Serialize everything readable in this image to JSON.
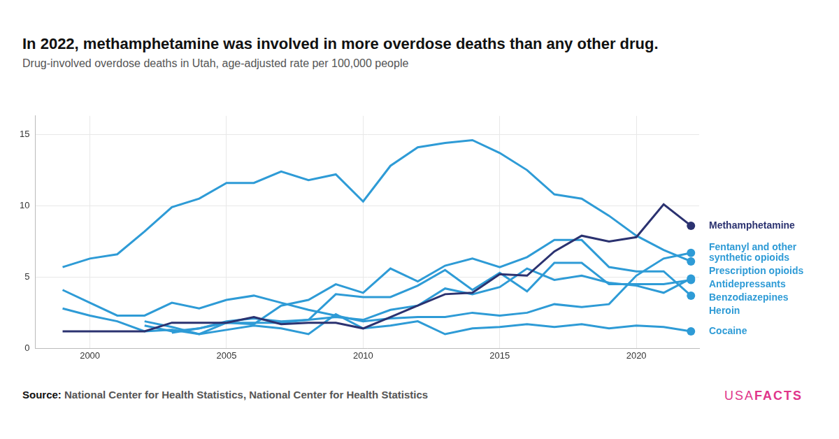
{
  "chart_data": {
    "type": "line",
    "title": "In 2022, methamphetamine was involved in more overdose deaths than any other drug.",
    "subtitle": "Drug-involved overdose deaths in Utah, age-adjusted rate per 100,000 people",
    "source_label": "Source:",
    "source": "National Center for Health Statistics, National Center for Health Statistics",
    "logo": [
      "USA",
      "FACTS"
    ],
    "x": [
      1999,
      2000,
      2001,
      2002,
      2003,
      2004,
      2005,
      2006,
      2007,
      2008,
      2009,
      2010,
      2011,
      2012,
      2013,
      2014,
      2015,
      2016,
      2017,
      2018,
      2019,
      2020,
      2021,
      2022
    ],
    "xlim": [
      1998,
      2022.3
    ],
    "xticks": [
      2000,
      2005,
      2010,
      2015,
      2020
    ],
    "ylim": [
      0,
      16.3
    ],
    "yticks": [
      0,
      5,
      10,
      15
    ],
    "grid": true,
    "marker": "last",
    "series": [
      {
        "name": "Methamphetamine",
        "color": "#2b3270",
        "values": [
          1.2,
          1.2,
          1.2,
          1.2,
          1.8,
          1.8,
          1.8,
          2.2,
          1.7,
          1.8,
          1.8,
          1.4,
          2.2,
          3.0,
          3.8,
          3.9,
          5.2,
          5.1,
          6.8,
          7.9,
          7.5,
          7.8,
          10.1,
          8.6
        ]
      },
      {
        "name": "Fentanyl and other synthetic opioids",
        "color": "#2e9bd6",
        "values": [
          4.1,
          3.2,
          2.3,
          2.3,
          3.2,
          2.8,
          3.4,
          3.7,
          3.2,
          2.7,
          2.3,
          1.9,
          2.1,
          2.2,
          2.2,
          2.5,
          2.3,
          2.5,
          3.1,
          2.9,
          3.1,
          5.1,
          6.3,
          6.7
        ]
      },
      {
        "name": "Prescription opioids",
        "color": "#2e9bd6",
        "values": [
          5.7,
          6.3,
          6.6,
          8.2,
          9.9,
          10.5,
          11.6,
          11.6,
          12.4,
          11.8,
          12.2,
          10.3,
          12.8,
          14.1,
          14.4,
          14.6,
          13.7,
          12.5,
          10.8,
          10.5,
          9.3,
          7.9,
          6.9,
          6.1
        ]
      },
      {
        "name": "Antidepressants",
        "color": "#2e9bd6",
        "values": [
          null,
          null,
          null,
          null,
          1.1,
          1.4,
          1.8,
          1.8,
          1.8,
          2.0,
          2.2,
          2.0,
          2.7,
          3.0,
          4.2,
          3.8,
          4.3,
          5.6,
          4.8,
          5.1,
          4.6,
          4.4,
          3.9,
          4.9
        ]
      },
      {
        "name": "Benzodiazepines",
        "color": "#2e9bd6",
        "values": [
          null,
          null,
          null,
          1.6,
          1.2,
          1.4,
          1.9,
          2.1,
          1.9,
          2.0,
          3.8,
          3.6,
          3.6,
          4.4,
          5.5,
          4.1,
          5.3,
          4.0,
          6.0,
          6.0,
          4.5,
          4.5,
          4.5,
          4.8
        ]
      },
      {
        "name": "Heroin",
        "color": "#2e9bd6",
        "values": [
          null,
          null,
          null,
          1.9,
          1.5,
          1.0,
          1.8,
          1.7,
          3.0,
          3.4,
          4.5,
          3.9,
          5.6,
          4.7,
          5.8,
          6.3,
          5.7,
          6.4,
          7.6,
          7.6,
          5.7,
          5.4,
          5.4,
          3.7
        ]
      },
      {
        "name": "Cocaine",
        "color": "#2e9bd6",
        "values": [
          2.8,
          2.3,
          1.9,
          1.2,
          1.3,
          1.0,
          1.3,
          1.6,
          1.4,
          1.0,
          2.4,
          1.4,
          1.6,
          1.9,
          1.0,
          1.4,
          1.5,
          1.7,
          1.5,
          1.7,
          1.4,
          1.6,
          1.5,
          1.2
        ]
      }
    ]
  }
}
